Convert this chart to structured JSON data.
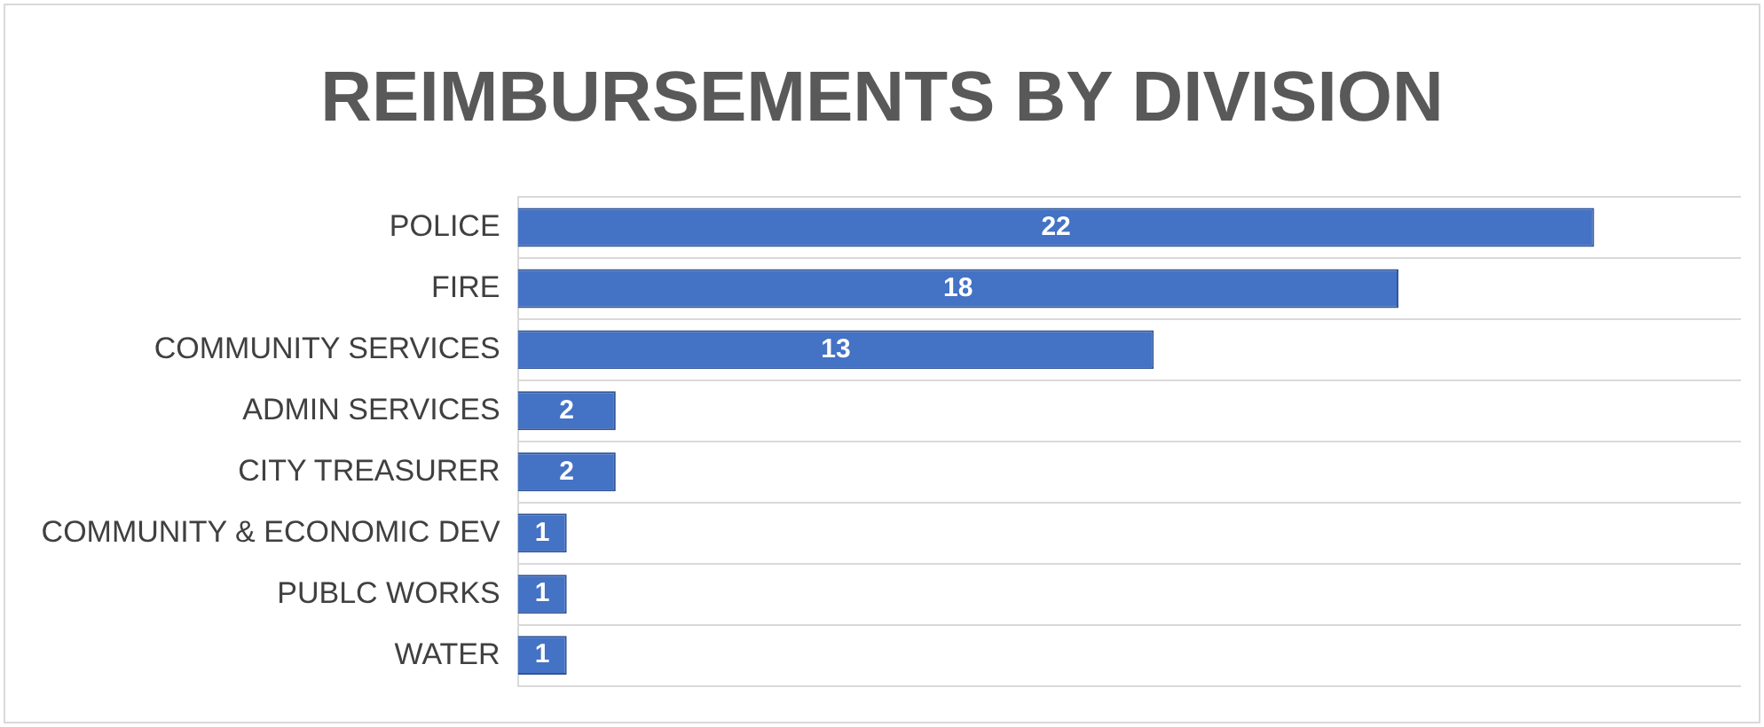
{
  "chart_data": {
    "type": "bar",
    "orientation": "horizontal",
    "title": "REIMBURSEMENTS BY DIVISION",
    "categories": [
      "POLICE",
      "FIRE",
      "COMMUNITY SERVICES",
      "ADMIN SERVICES",
      "CITY TREASURER",
      "COMMUNITY & ECONOMIC DEV",
      "PUBLC WORKS",
      "WATER"
    ],
    "values": [
      22,
      18,
      13,
      2,
      2,
      1,
      1,
      1
    ],
    "color": "#4472c4",
    "data_labels": true,
    "grid": "y"
  }
}
